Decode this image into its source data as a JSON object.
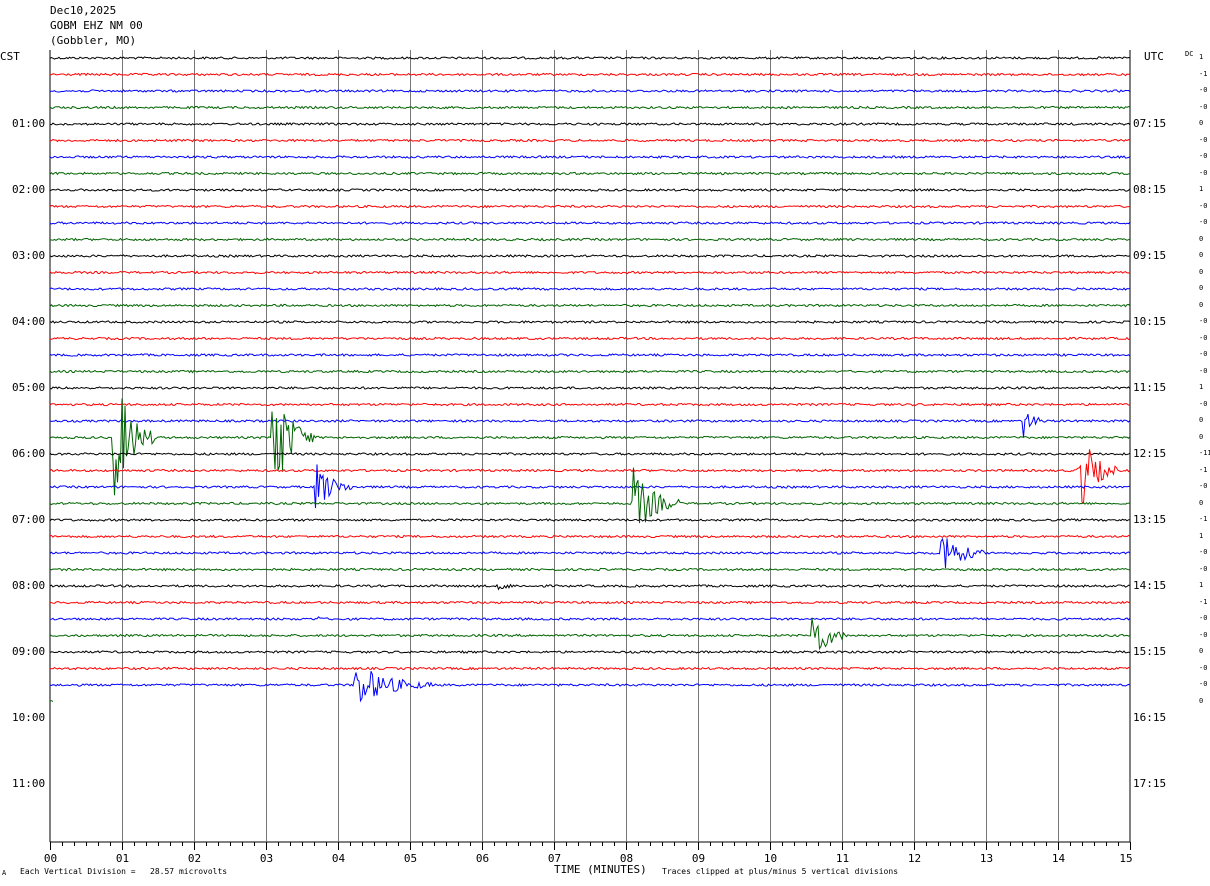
{
  "header": {
    "date": "Dec10,2025",
    "station": "GOBM EHZ NM 00",
    "location": "(Gobbler, MO)"
  },
  "left_tz": "CST",
  "right_tz": "UTC",
  "dc_label": "DC",
  "footer": {
    "corner_mark": "A",
    "scale": "Each Vertical Division =   28.57 microvolts",
    "xlabel": "TIME (MINUTES)",
    "clip_note": "Traces clipped at plus/minus 5 vertical divisions"
  },
  "chart_data": {
    "type": "line",
    "title": "",
    "xlabel": "TIME (MINUTES)",
    "xlim": [
      0,
      15
    ],
    "x_ticks": [
      "00",
      "01",
      "02",
      "03",
      "04",
      "05",
      "06",
      "07",
      "08",
      "09",
      "10",
      "11",
      "12",
      "13",
      "14",
      "15"
    ],
    "trace_colors": [
      "#000000",
      "#ff0000",
      "#0000ff",
      "#006400"
    ],
    "traces_per_hour": 4,
    "n_traces": 40,
    "last_trace_length_min": 0.05,
    "cst_labels": [
      "01:00",
      "02:00",
      "03:00",
      "04:00",
      "05:00",
      "06:00",
      "07:00",
      "08:00",
      "09:00",
      "10:00",
      "11:00"
    ],
    "utc_labels": [
      "07:15",
      "08:15",
      "09:15",
      "10:15",
      "11:15",
      "12:15",
      "13:15",
      "14:15",
      "15:15",
      "16:15",
      "17:15"
    ],
    "dc_offsets": [
      "1",
      "-1",
      "-0",
      "-0",
      "0",
      "-0",
      "-0",
      "-0",
      "1",
      "-0",
      "-0",
      "0",
      "0",
      "0",
      "0",
      "0",
      "-0",
      "-0",
      "-0",
      "-0",
      "1",
      "-0",
      "0",
      "0",
      "-11",
      "-1",
      "-0",
      "0",
      "-1",
      "1",
      "-0",
      "-0",
      "1",
      "-1",
      "-0",
      "-0",
      "0",
      "-0",
      "-0",
      "0"
    ],
    "events": [
      {
        "trace": 23,
        "minute": 0.95,
        "amplitude": 9,
        "duration_min": 0.6
      },
      {
        "trace": 23,
        "minute": 3.15,
        "amplitude": 9,
        "duration_min": 0.6
      },
      {
        "trace": 26,
        "minute": 3.75,
        "amplitude": 3.5,
        "duration_min": 0.55
      },
      {
        "trace": 34,
        "minute": 3.75,
        "amplitude": 0.6,
        "duration_min": 0.15
      },
      {
        "trace": 38,
        "minute": 4.3,
        "amplitude": 3,
        "duration_min": 1.1
      },
      {
        "trace": 32,
        "minute": 6.3,
        "amplitude": 0.6,
        "duration_min": 0.3
      },
      {
        "trace": 27,
        "minute": 8.15,
        "amplitude": 5,
        "duration_min": 0.7
      },
      {
        "trace": 35,
        "minute": 10.65,
        "amplitude": 4,
        "duration_min": 0.5
      },
      {
        "trace": 30,
        "minute": 12.45,
        "amplitude": 3.5,
        "duration_min": 0.6
      },
      {
        "trace": 22,
        "minute": 13.6,
        "amplitude": 2,
        "duration_min": 0.3
      },
      {
        "trace": 25,
        "minute": 14.35,
        "amplitude": 6,
        "duration_min": 0.55
      }
    ]
  }
}
